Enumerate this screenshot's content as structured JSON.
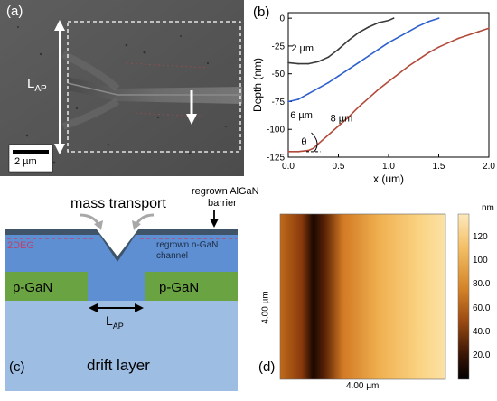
{
  "panel_a": {
    "label": "(a)",
    "length_label": "L",
    "length_sub": "AP",
    "scalebar": "2 µm"
  },
  "panel_b": {
    "label": "(b)",
    "chart_data": {
      "type": "line",
      "xlabel": "x (um)",
      "ylabel": "Depth (nm)",
      "xlim": [
        0.0,
        2.0
      ],
      "ylim": [
        -125,
        5
      ],
      "xticks": [
        "0.0",
        "0.5",
        "1.0",
        "1.5",
        "2.0"
      ],
      "yticks": [
        "0",
        "-25",
        "-50",
        "-75",
        "-100",
        "-125"
      ],
      "annotations": [
        "θ"
      ],
      "grid": false,
      "series": [
        {
          "name": "2 µm",
          "color": "#3a3a3a",
          "x": [
            0.0,
            0.1,
            0.2,
            0.3,
            0.4,
            0.5,
            0.6,
            0.7,
            0.8,
            0.9,
            1.0,
            1.05
          ],
          "y": [
            -40,
            -41,
            -41,
            -39,
            -35,
            -28,
            -20,
            -13,
            -8,
            -4,
            -2,
            0
          ]
        },
        {
          "name": "6 µm",
          "color": "#2d5fce",
          "x": [
            0.0,
            0.1,
            0.2,
            0.3,
            0.4,
            0.5,
            0.6,
            0.7,
            0.8,
            0.9,
            1.0,
            1.1,
            1.2,
            1.3,
            1.4,
            1.5
          ],
          "y": [
            -75,
            -73,
            -68,
            -63,
            -58,
            -52,
            -46,
            -40,
            -34,
            -28,
            -22,
            -17,
            -12,
            -7,
            -3,
            0
          ]
        },
        {
          "name": "8 µm",
          "color": "#b24a3a",
          "x": [
            0.0,
            0.1,
            0.2,
            0.25,
            0.3,
            0.4,
            0.5,
            0.6,
            0.7,
            0.8,
            0.9,
            1.0,
            1.1,
            1.2,
            1.3,
            1.4,
            1.5,
            1.6,
            1.7,
            1.8,
            1.9,
            2.0
          ],
          "y": [
            -120,
            -120,
            -119,
            -117,
            -113,
            -105,
            -97,
            -89,
            -80,
            -72,
            -64,
            -57,
            -50,
            -43,
            -37,
            -31,
            -26,
            -22,
            -18,
            -15,
            -12,
            -9
          ]
        }
      ]
    }
  },
  "panel_c": {
    "label": "(c)",
    "title": "mass transport",
    "barrier_label_1": "regrown AlGaN",
    "barrier_label_2": "barrier",
    "twodeg_label": "2DEG",
    "channel_label_1": "regrown n-GaN",
    "channel_label_2": "channel",
    "pgan_left": "p-GaN",
    "pgan_right": "p-GaN",
    "lap_main": "L",
    "lap_sub": "AP",
    "drift_label": "drift layer",
    "colors": {
      "algan": "#3f5468",
      "ngan": "#5d8fd2",
      "pgan": "#6aa442",
      "drift": "#9dbde3",
      "twodeg": "#c0406a"
    }
  },
  "panel_d": {
    "label": "(d)",
    "ylabel": "4.00 µm",
    "xlabel": "4.00 µm",
    "colorbar_unit": "nm",
    "colorbar_ticks": [
      "120",
      "100",
      "80.0",
      "60.0",
      "40.0",
      "20.0"
    ]
  }
}
